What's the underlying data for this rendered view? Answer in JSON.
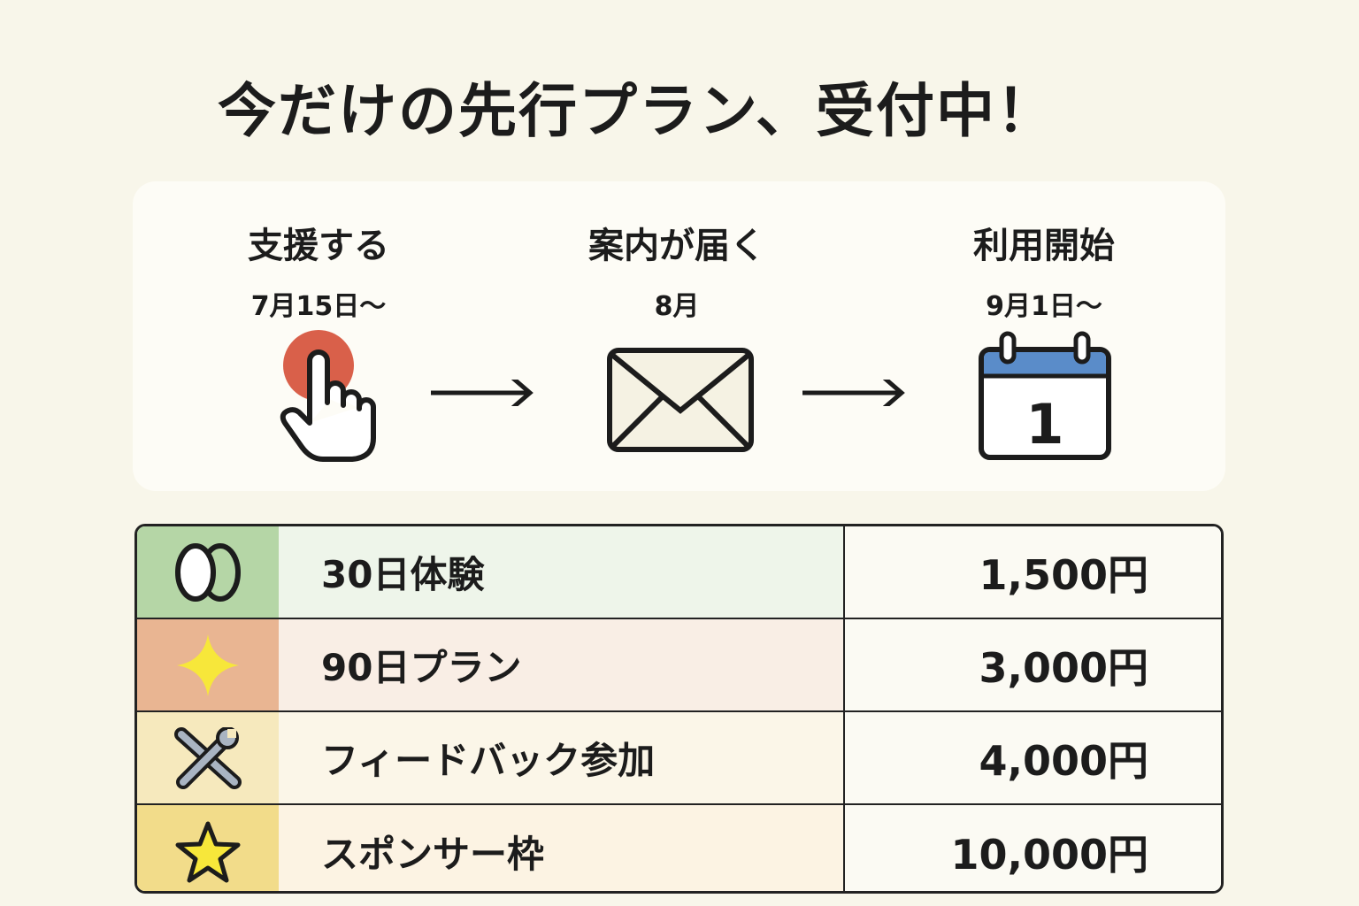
{
  "title": "今だけの先行プラン、受付中！",
  "steps": [
    {
      "label": "支援する",
      "date": "7月15日〜",
      "icon": "tap-hand-icon"
    },
    {
      "label": "案内が届く",
      "date": "8月",
      "icon": "envelope-icon"
    },
    {
      "label": "利用開始",
      "date": "9月1日〜",
      "icon": "calendar-icon",
      "calendar_day": "1"
    }
  ],
  "plans": [
    {
      "name": "30日体験",
      "price": "1,500円",
      "icon": "egg-icon",
      "icon_bg": "#b5d6a6",
      "row_bg": "#eef5ea"
    },
    {
      "name": "90日プラン",
      "price": "3,000円",
      "icon": "sparkle-icon",
      "icon_bg": "#e9b592",
      "row_bg": "#f9eee5"
    },
    {
      "name": "フィードバック参加",
      "price": "4,000円",
      "icon": "tools-icon",
      "icon_bg": "#f6e9bd",
      "row_bg": "#fbf6e8"
    },
    {
      "name": "スポンサー枠",
      "price": "10,000円",
      "icon": "star-icon",
      "icon_bg": "#f2dc8a",
      "row_bg": "#fcf3e3"
    }
  ]
}
